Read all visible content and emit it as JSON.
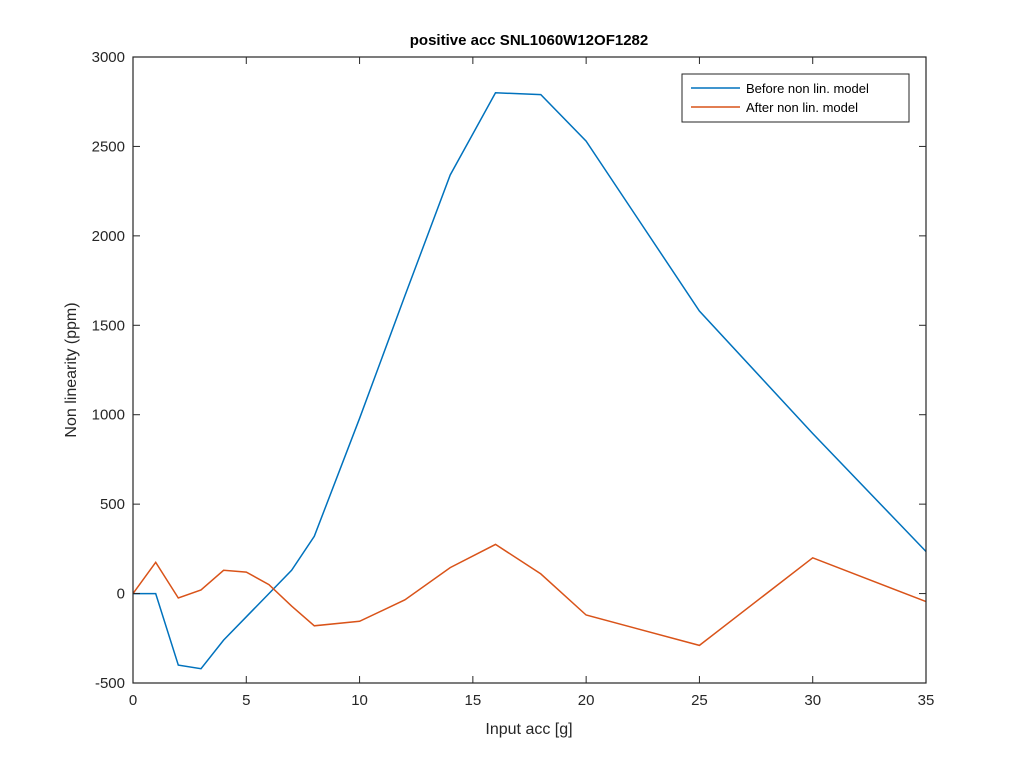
{
  "chart_data": {
    "type": "line",
    "title": "positive acc SNL1060W12OF1282",
    "xlabel": "Input acc [g]",
    "ylabel": "Non linearity (ppm)",
    "xlim": [
      0,
      35
    ],
    "ylim": [
      -500,
      3000
    ],
    "xticks": [
      0,
      5,
      10,
      15,
      20,
      25,
      30,
      35
    ],
    "yticks": [
      -500,
      0,
      500,
      1000,
      1500,
      2000,
      2500,
      3000
    ],
    "grid": false,
    "legend_position": "top-right",
    "x": [
      0,
      1,
      2,
      3,
      4,
      5,
      6,
      7,
      8,
      10,
      12,
      14,
      16,
      18,
      20,
      25,
      30,
      35
    ],
    "series": [
      {
        "name": "Before non lin. model",
        "color": "#0072BD",
        "values": [
          0,
          0,
          -400,
          -420,
          -260,
          -130,
          0,
          130,
          320,
          980,
          1665,
          2340,
          2800,
          2790,
          2530,
          1580,
          895,
          235
        ]
      },
      {
        "name": "After non lin. model",
        "color": "#D95319",
        "values": [
          0,
          175,
          -25,
          20,
          130,
          120,
          50,
          -70,
          -180,
          -155,
          -35,
          145,
          275,
          110,
          -120,
          -290,
          200,
          -45
        ]
      }
    ]
  }
}
